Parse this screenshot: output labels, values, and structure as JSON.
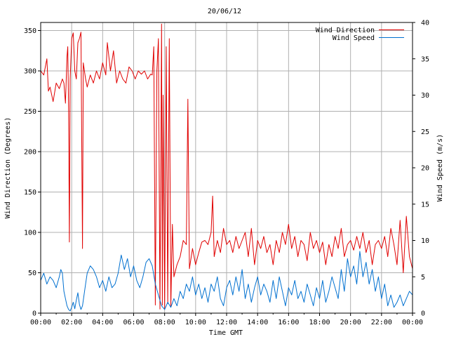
{
  "chart_data": {
    "type": "line",
    "title": "20/06/12",
    "xlabel": "Time GMT",
    "ylabel_left": "Wind Direction (Degrees)",
    "ylabel_right": "Wind Speed (m/s)",
    "x_ticks": [
      "00:00",
      "02:00",
      "04:00",
      "06:00",
      "08:00",
      "10:00",
      "12:00",
      "14:00",
      "16:00",
      "18:00",
      "20:00",
      "22:00",
      "00:00"
    ],
    "x_range_hours": [
      0,
      24
    ],
    "y_left_ticks": [
      0,
      50,
      100,
      150,
      200,
      250,
      300,
      350
    ],
    "y_left_range": [
      0,
      360
    ],
    "y_right_ticks": [
      0,
      5,
      10,
      15,
      20,
      25,
      30,
      35,
      40
    ],
    "y_right_range": [
      0,
      40
    ],
    "grid": true,
    "legend_position": "top-right",
    "series": [
      {
        "name": "Wind Direction",
        "axis": "left",
        "color": "#e00000",
        "points": [
          [
            0.0,
            300
          ],
          [
            0.2,
            295
          ],
          [
            0.4,
            315
          ],
          [
            0.5,
            275
          ],
          [
            0.6,
            280
          ],
          [
            0.8,
            262
          ],
          [
            1.0,
            285
          ],
          [
            1.2,
            278
          ],
          [
            1.4,
            290
          ],
          [
            1.5,
            285
          ],
          [
            1.6,
            260
          ],
          [
            1.7,
            318
          ],
          [
            1.75,
            330
          ],
          [
            1.8,
            250
          ],
          [
            1.85,
            88
          ],
          [
            1.9,
            290
          ],
          [
            2.0,
            340
          ],
          [
            2.1,
            347
          ],
          [
            2.2,
            300
          ],
          [
            2.3,
            290
          ],
          [
            2.4,
            335
          ],
          [
            2.5,
            340
          ],
          [
            2.6,
            348
          ],
          [
            2.7,
            80
          ],
          [
            2.75,
            310
          ],
          [
            2.9,
            290
          ],
          [
            3.0,
            280
          ],
          [
            3.2,
            295
          ],
          [
            3.4,
            285
          ],
          [
            3.6,
            300
          ],
          [
            3.8,
            290
          ],
          [
            4.0,
            310
          ],
          [
            4.2,
            295
          ],
          [
            4.3,
            335
          ],
          [
            4.5,
            300
          ],
          [
            4.7,
            325
          ],
          [
            4.9,
            285
          ],
          [
            5.1,
            300
          ],
          [
            5.3,
            290
          ],
          [
            5.5,
            285
          ],
          [
            5.7,
            305
          ],
          [
            5.9,
            300
          ],
          [
            6.1,
            290
          ],
          [
            6.3,
            300
          ],
          [
            6.5,
            296
          ],
          [
            6.7,
            300
          ],
          [
            6.9,
            290
          ],
          [
            7.1,
            296
          ],
          [
            7.2,
            295
          ],
          [
            7.3,
            330
          ],
          [
            7.4,
            10
          ],
          [
            7.5,
            300
          ],
          [
            7.6,
            340
          ],
          [
            7.7,
            5
          ],
          [
            7.8,
            358
          ],
          [
            7.85,
            10
          ],
          [
            7.9,
            270
          ],
          [
            8.0,
            5
          ],
          [
            8.1,
            330
          ],
          [
            8.2,
            12
          ],
          [
            8.3,
            340
          ],
          [
            8.4,
            8
          ],
          [
            8.5,
            110
          ],
          [
            8.6,
            45
          ],
          [
            8.8,
            60
          ],
          [
            9.0,
            70
          ],
          [
            9.2,
            90
          ],
          [
            9.4,
            85
          ],
          [
            9.5,
            265
          ],
          [
            9.6,
            55
          ],
          [
            9.8,
            80
          ],
          [
            10.0,
            60
          ],
          [
            10.2,
            75
          ],
          [
            10.4,
            88
          ],
          [
            10.6,
            90
          ],
          [
            10.8,
            85
          ],
          [
            11.0,
            100
          ],
          [
            11.1,
            145
          ],
          [
            11.2,
            70
          ],
          [
            11.4,
            90
          ],
          [
            11.6,
            75
          ],
          [
            11.8,
            105
          ],
          [
            12.0,
            85
          ],
          [
            12.2,
            90
          ],
          [
            12.4,
            75
          ],
          [
            12.6,
            95
          ],
          [
            12.8,
            80
          ],
          [
            13.0,
            90
          ],
          [
            13.2,
            100
          ],
          [
            13.4,
            70
          ],
          [
            13.6,
            105
          ],
          [
            13.8,
            60
          ],
          [
            14.0,
            90
          ],
          [
            14.2,
            80
          ],
          [
            14.4,
            95
          ],
          [
            14.6,
            75
          ],
          [
            14.8,
            85
          ],
          [
            15.0,
            60
          ],
          [
            15.2,
            90
          ],
          [
            15.4,
            75
          ],
          [
            15.6,
            100
          ],
          [
            15.8,
            85
          ],
          [
            16.0,
            110
          ],
          [
            16.2,
            80
          ],
          [
            16.4,
            95
          ],
          [
            16.6,
            70
          ],
          [
            16.8,
            90
          ],
          [
            17.0,
            85
          ],
          [
            17.2,
            65
          ],
          [
            17.4,
            100
          ],
          [
            17.6,
            80
          ],
          [
            17.8,
            90
          ],
          [
            18.0,
            75
          ],
          [
            18.2,
            88
          ],
          [
            18.4,
            60
          ],
          [
            18.6,
            85
          ],
          [
            18.8,
            70
          ],
          [
            19.0,
            95
          ],
          [
            19.2,
            80
          ],
          [
            19.4,
            105
          ],
          [
            19.6,
            70
          ],
          [
            19.8,
            85
          ],
          [
            20.0,
            90
          ],
          [
            20.2,
            78
          ],
          [
            20.4,
            95
          ],
          [
            20.6,
            80
          ],
          [
            20.8,
            100
          ],
          [
            21.0,
            75
          ],
          [
            21.2,
            90
          ],
          [
            21.4,
            60
          ],
          [
            21.6,
            85
          ],
          [
            21.8,
            90
          ],
          [
            22.0,
            80
          ],
          [
            22.2,
            95
          ],
          [
            22.4,
            70
          ],
          [
            22.6,
            105
          ],
          [
            22.8,
            85
          ],
          [
            23.0,
            60
          ],
          [
            23.2,
            115
          ],
          [
            23.4,
            50
          ],
          [
            23.6,
            120
          ],
          [
            23.8,
            70
          ],
          [
            24.0,
            55
          ]
        ]
      },
      {
        "name": "Wind Speed",
        "axis": "right",
        "color": "#0070d0",
        "points": [
          [
            0.0,
            4.5
          ],
          [
            0.2,
            5.5
          ],
          [
            0.4,
            4.0
          ],
          [
            0.6,
            5.0
          ],
          [
            0.8,
            4.5
          ],
          [
            1.0,
            3.5
          ],
          [
            1.2,
            5.0
          ],
          [
            1.3,
            6.0
          ],
          [
            1.4,
            5.5
          ],
          [
            1.5,
            3.0
          ],
          [
            1.6,
            2.0
          ],
          [
            1.7,
            1.0
          ],
          [
            1.8,
            0.5
          ],
          [
            1.9,
            0.3
          ],
          [
            2.0,
            0.8
          ],
          [
            2.1,
            1.5
          ],
          [
            2.2,
            0.6
          ],
          [
            2.3,
            1.8
          ],
          [
            2.4,
            2.8
          ],
          [
            2.5,
            1.2
          ],
          [
            2.6,
            0.5
          ],
          [
            2.7,
            1.0
          ],
          [
            2.8,
            2.5
          ],
          [
            2.9,
            4.0
          ],
          [
            3.0,
            5.5
          ],
          [
            3.2,
            6.5
          ],
          [
            3.4,
            6.0
          ],
          [
            3.6,
            5.0
          ],
          [
            3.8,
            3.5
          ],
          [
            4.0,
            4.5
          ],
          [
            4.2,
            3.0
          ],
          [
            4.4,
            5.0
          ],
          [
            4.6,
            3.5
          ],
          [
            4.8,
            4.0
          ],
          [
            5.0,
            5.5
          ],
          [
            5.2,
            8.0
          ],
          [
            5.4,
            6.0
          ],
          [
            5.6,
            7.5
          ],
          [
            5.8,
            5.0
          ],
          [
            6.0,
            6.5
          ],
          [
            6.2,
            4.5
          ],
          [
            6.4,
            3.5
          ],
          [
            6.6,
            5.0
          ],
          [
            6.8,
            7.0
          ],
          [
            7.0,
            7.5
          ],
          [
            7.2,
            6.5
          ],
          [
            7.4,
            4.0
          ],
          [
            7.6,
            2.5
          ],
          [
            7.8,
            1.0
          ],
          [
            8.0,
            0.5
          ],
          [
            8.2,
            1.5
          ],
          [
            8.4,
            0.8
          ],
          [
            8.6,
            2.0
          ],
          [
            8.8,
            1.0
          ],
          [
            9.0,
            3.0
          ],
          [
            9.2,
            2.0
          ],
          [
            9.4,
            4.0
          ],
          [
            9.6,
            3.0
          ],
          [
            9.8,
            5.0
          ],
          [
            10.0,
            2.5
          ],
          [
            10.2,
            4.0
          ],
          [
            10.4,
            2.0
          ],
          [
            10.6,
            3.5
          ],
          [
            10.8,
            1.5
          ],
          [
            11.0,
            4.0
          ],
          [
            11.2,
            3.0
          ],
          [
            11.4,
            5.0
          ],
          [
            11.6,
            2.0
          ],
          [
            11.8,
            1.0
          ],
          [
            12.0,
            3.5
          ],
          [
            12.2,
            4.5
          ],
          [
            12.4,
            2.5
          ],
          [
            12.6,
            5.0
          ],
          [
            12.8,
            3.0
          ],
          [
            13.0,
            6.0
          ],
          [
            13.2,
            2.0
          ],
          [
            13.4,
            4.0
          ],
          [
            13.6,
            1.5
          ],
          [
            13.8,
            3.5
          ],
          [
            14.0,
            5.0
          ],
          [
            14.2,
            2.5
          ],
          [
            14.4,
            4.0
          ],
          [
            14.6,
            3.0
          ],
          [
            14.8,
            1.5
          ],
          [
            15.0,
            4.5
          ],
          [
            15.2,
            2.0
          ],
          [
            15.4,
            5.0
          ],
          [
            15.6,
            3.0
          ],
          [
            15.8,
            1.0
          ],
          [
            16.0,
            3.5
          ],
          [
            16.2,
            2.5
          ],
          [
            16.4,
            4.5
          ],
          [
            16.6,
            2.0
          ],
          [
            16.8,
            3.0
          ],
          [
            17.0,
            1.5
          ],
          [
            17.2,
            4.0
          ],
          [
            17.4,
            2.5
          ],
          [
            17.6,
            1.0
          ],
          [
            17.8,
            3.5
          ],
          [
            18.0,
            2.0
          ],
          [
            18.2,
            4.5
          ],
          [
            18.4,
            1.5
          ],
          [
            18.6,
            3.0
          ],
          [
            18.8,
            5.0
          ],
          [
            19.0,
            3.5
          ],
          [
            19.2,
            2.0
          ],
          [
            19.4,
            6.0
          ],
          [
            19.6,
            3.0
          ],
          [
            19.8,
            7.5
          ],
          [
            20.0,
            5.0
          ],
          [
            20.2,
            6.5
          ],
          [
            20.4,
            4.0
          ],
          [
            20.6,
            8.5
          ],
          [
            20.8,
            5.0
          ],
          [
            21.0,
            7.0
          ],
          [
            21.2,
            4.0
          ],
          [
            21.4,
            6.0
          ],
          [
            21.6,
            3.0
          ],
          [
            21.8,
            5.0
          ],
          [
            22.0,
            2.0
          ],
          [
            22.2,
            4.0
          ],
          [
            22.4,
            1.0
          ],
          [
            22.6,
            2.5
          ],
          [
            22.8,
            0.8
          ],
          [
            23.0,
            1.5
          ],
          [
            23.2,
            2.5
          ],
          [
            23.4,
            1.0
          ],
          [
            23.6,
            2.0
          ],
          [
            23.8,
            3.0
          ],
          [
            24.0,
            2.5
          ]
        ]
      }
    ]
  }
}
